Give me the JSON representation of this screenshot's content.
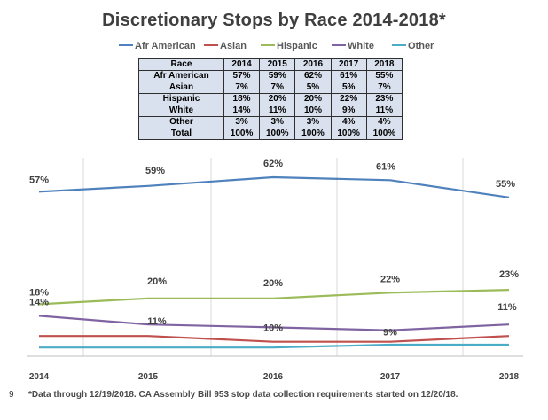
{
  "page_number": "9",
  "footnote": "*Data through 12/19/2018. CA Assembly Bill 953 stop data collection requirements started on 12/20/18.",
  "chart_data": {
    "type": "line",
    "title": "Discretionary Stops by Race 2014-2018*",
    "x": [
      "2014",
      "2015",
      "2016",
      "2017",
      "2018"
    ],
    "ylim": [
      0,
      65
    ],
    "grid": "vertical",
    "legend_position": "top",
    "series": [
      {
        "name": "Afr American",
        "color": "#4f81bd",
        "values": [
          57,
          59,
          62,
          61,
          55
        ],
        "labels": [
          "57%",
          "59%",
          "62%",
          "61%",
          "55%"
        ],
        "show_labels": true
      },
      {
        "name": "Asian",
        "color": "#c0504d",
        "values": [
          7,
          7,
          5,
          5,
          7
        ],
        "labels": [
          "7%",
          "7%",
          "5%",
          "5%",
          "7%"
        ],
        "show_labels": false
      },
      {
        "name": "Hispanic",
        "color": "#9bbb59",
        "values": [
          18,
          20,
          20,
          22,
          23
        ],
        "labels": [
          "18%",
          "20%",
          "20%",
          "22%",
          "23%"
        ],
        "show_labels": true
      },
      {
        "name": "White",
        "color": "#8064a2",
        "values": [
          14,
          11,
          10,
          9,
          11
        ],
        "labels": [
          "14%",
          "11%",
          "10%",
          "9%",
          "11%"
        ],
        "show_labels": true
      },
      {
        "name": "Other",
        "color": "#4bacc6",
        "values": [
          3,
          3,
          3,
          4,
          4
        ],
        "labels": [
          "3%",
          "3%",
          "3%",
          "4%",
          "4%"
        ],
        "show_labels": false
      }
    ],
    "table": {
      "header": [
        "Race",
        "2014",
        "2015",
        "2016",
        "2017",
        "2018"
      ],
      "rows": [
        [
          "Afr American",
          "57%",
          "59%",
          "62%",
          "61%",
          "55%"
        ],
        [
          "Asian",
          "7%",
          "7%",
          "5%",
          "5%",
          "7%"
        ],
        [
          "Hispanic",
          "18%",
          "20%",
          "20%",
          "22%",
          "23%"
        ],
        [
          "White",
          "14%",
          "11%",
          "10%",
          "9%",
          "11%"
        ],
        [
          "Other",
          "3%",
          "3%",
          "3%",
          "4%",
          "4%"
        ],
        [
          "Total",
          "100%",
          "100%",
          "100%",
          "100%",
          "100%"
        ]
      ]
    }
  }
}
